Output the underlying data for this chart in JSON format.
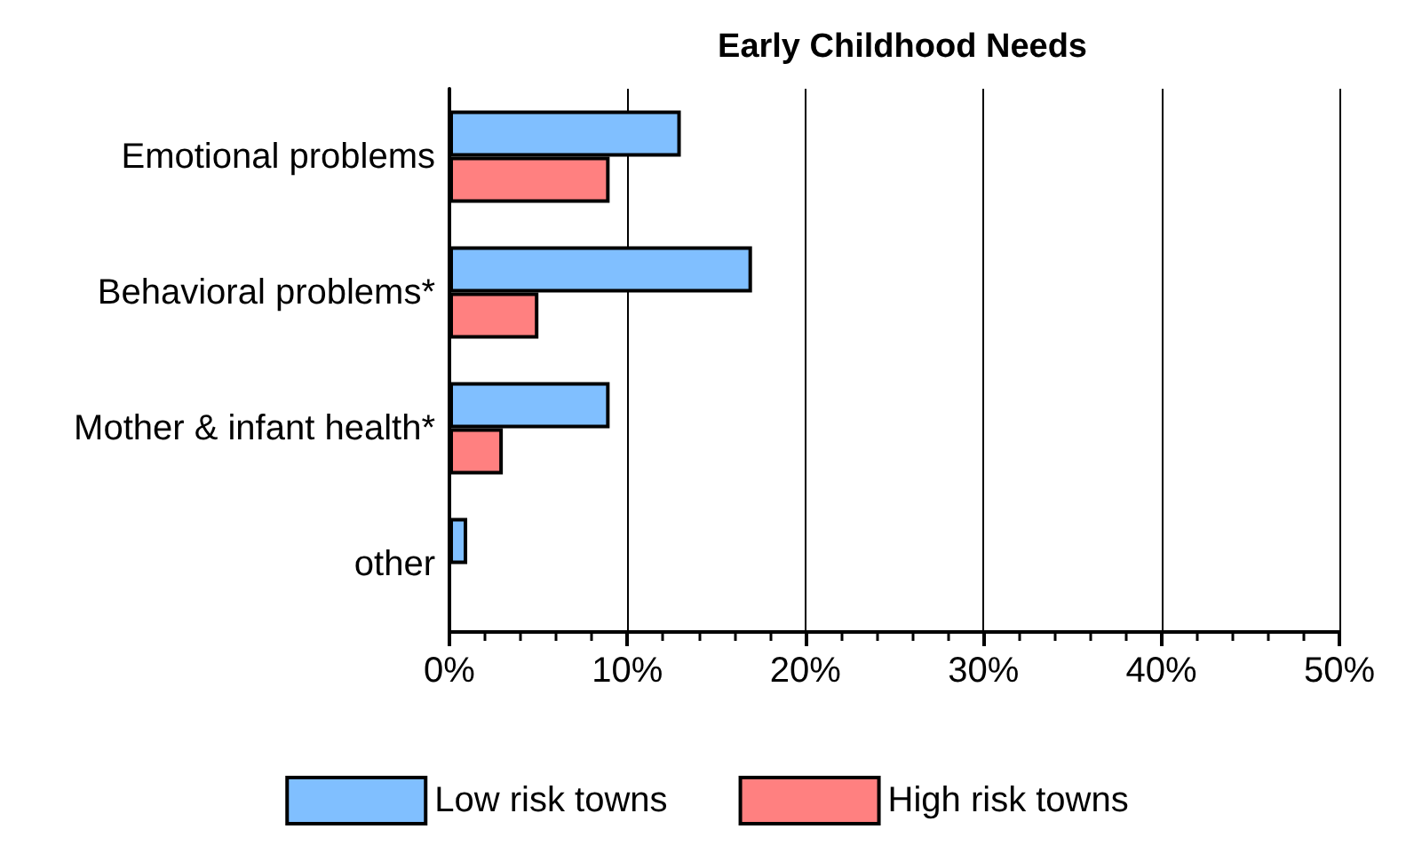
{
  "chart_data": {
    "type": "bar",
    "orientation": "horizontal",
    "title": "Early Childhood Needs",
    "categories": [
      "Emotional problems",
      "Behavioral problems*",
      "Mother & infant health*",
      "other"
    ],
    "series": [
      {
        "name": "Low risk towns",
        "color": "#80bfff",
        "values": [
          13,
          17,
          9,
          1
        ]
      },
      {
        "name": "High risk towns",
        "color": "#ff8080",
        "values": [
          9,
          5,
          3,
          null
        ]
      }
    ],
    "xlim": [
      0,
      50
    ],
    "xticks": [
      {
        "value": 0,
        "label": "0%"
      },
      {
        "value": 10,
        "label": "10%"
      },
      {
        "value": 20,
        "label": "20%"
      },
      {
        "value": 30,
        "label": "30%"
      },
      {
        "value": 40,
        "label": "40%"
      },
      {
        "value": 50,
        "label": "50%"
      }
    ],
    "grid": "x",
    "legend": "bottom"
  }
}
